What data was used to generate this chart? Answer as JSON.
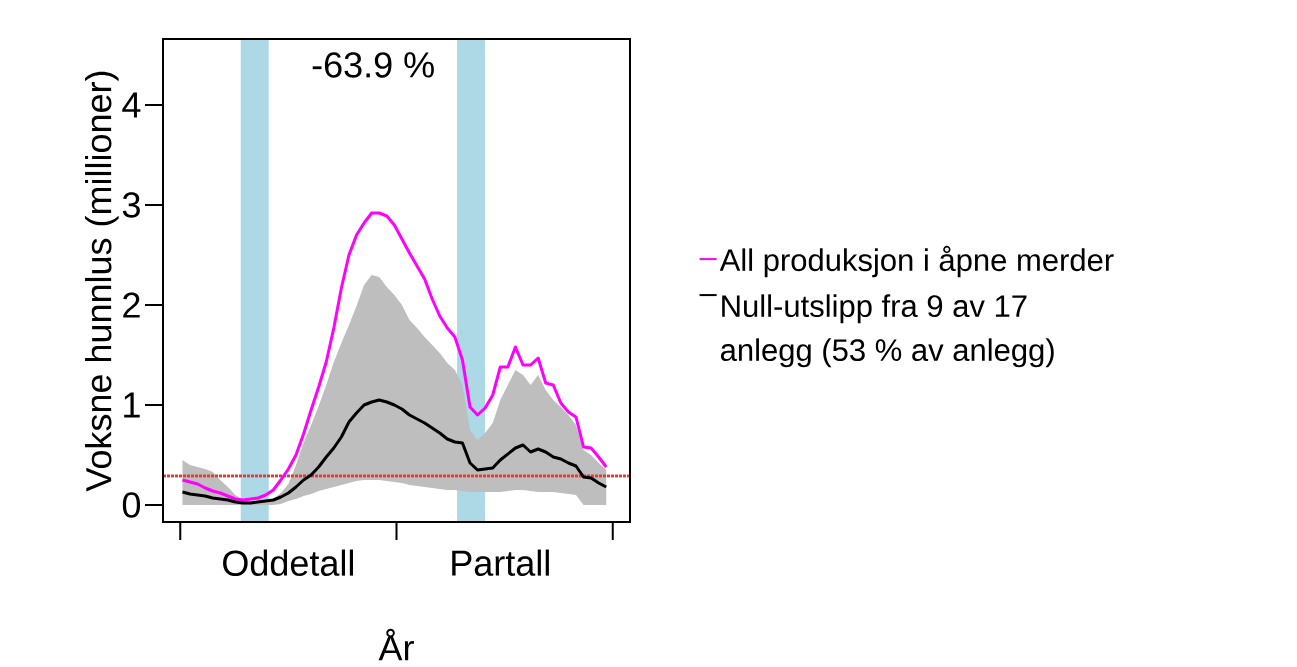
{
  "chart_data": {
    "type": "line",
    "xlabel": "År",
    "ylabel": "Voksne hunnlus (millioner)",
    "annotations": [
      "-63.9 %"
    ],
    "categories": [
      null,
      null,
      null,
      null,
      null,
      null,
      null,
      null,
      null,
      null,
      null,
      null,
      null,
      null,
      "Oddetall",
      null,
      null,
      null,
      null,
      null,
      null,
      null,
      null,
      null,
      null,
      null,
      null,
      null,
      null,
      null,
      null,
      null,
      null,
      null,
      null,
      null,
      null,
      null,
      null,
      null,
      null,
      null,
      "Partall",
      null,
      null,
      null,
      null,
      null,
      null,
      null,
      null,
      null,
      null,
      null,
      null,
      null,
      null
    ],
    "ylim": [
      -0.17,
      4.66
    ],
    "yticks": [
      0,
      1,
      2,
      3,
      4
    ],
    "legend": "right",
    "ref_lines": [
      {
        "axis": "y",
        "value": 0.29,
        "color": "#e8382f",
        "line_style": "dotted"
      }
    ],
    "series": [
      {
        "name": "All produksjon i åpne merder",
        "color": "#ff00ff",
        "values": [
          0.25,
          0.23,
          0.21,
          0.17,
          0.14,
          0.12,
          0.09,
          0.06,
          0.05,
          0.06,
          0.07,
          0.1,
          0.15,
          0.25,
          0.36,
          0.5,
          0.71,
          0.95,
          1.18,
          1.43,
          1.77,
          2.17,
          2.5,
          2.7,
          2.82,
          2.92,
          2.92,
          2.89,
          2.8,
          2.66,
          2.52,
          2.39,
          2.26,
          2.06,
          1.89,
          1.77,
          1.68,
          1.45,
          0.98,
          0.9,
          0.97,
          1.1,
          1.38,
          1.38,
          1.58,
          1.4,
          1.4,
          1.47,
          1.22,
          1.2,
          1.02,
          0.93,
          0.88,
          0.58,
          0.57,
          0.48,
          0.38
        ]
      },
      {
        "name": "Null-utslipp fra 9 av 17 anlegg (53 % av anlegg)",
        "color": "#000000",
        "values": [
          0.13,
          0.11,
          0.1,
          0.09,
          0.07,
          0.06,
          0.05,
          0.03,
          0.02,
          0.02,
          0.03,
          0.04,
          0.05,
          0.08,
          0.12,
          0.18,
          0.25,
          0.3,
          0.38,
          0.48,
          0.57,
          0.68,
          0.83,
          0.92,
          1.0,
          1.03,
          1.05,
          1.03,
          1.0,
          0.96,
          0.9,
          0.86,
          0.82,
          0.77,
          0.72,
          0.66,
          0.63,
          0.62,
          0.42,
          0.35,
          0.36,
          0.37,
          0.45,
          0.51,
          0.57,
          0.6,
          0.53,
          0.56,
          0.53,
          0.48,
          0.46,
          0.42,
          0.39,
          0.28,
          0.27,
          0.22,
          0.18
        ],
        "lower": [
          0,
          0,
          0,
          0,
          0,
          0,
          0,
          0,
          0,
          0,
          0,
          0,
          0,
          0.01,
          0.04,
          0.06,
          0.09,
          0.11,
          0.14,
          0.16,
          0.18,
          0.2,
          0.22,
          0.24,
          0.25,
          0.25,
          0.25,
          0.24,
          0.23,
          0.22,
          0.2,
          0.19,
          0.18,
          0.17,
          0.16,
          0.15,
          0.15,
          0.14,
          0.13,
          0.13,
          0.13,
          0.13,
          0.13,
          0.14,
          0.15,
          0.15,
          0.14,
          0.13,
          0.13,
          0.13,
          0.12,
          0.11,
          0.1,
          0,
          0,
          0,
          0
        ],
        "upper": [
          0.45,
          0.4,
          0.38,
          0.36,
          0.33,
          0.25,
          0.18,
          0.1,
          0.05,
          0.04,
          0.04,
          0.05,
          0.06,
          0.12,
          0.21,
          0.4,
          0.62,
          0.8,
          0.99,
          1.2,
          1.43,
          1.62,
          1.8,
          1.99,
          2.2,
          2.3,
          2.28,
          2.18,
          2.1,
          2.0,
          1.85,
          1.77,
          1.68,
          1.6,
          1.52,
          1.42,
          1.35,
          1.2,
          0.75,
          0.65,
          0.72,
          0.82,
          1.05,
          1.2,
          1.35,
          1.3,
          1.2,
          1.3,
          1.15,
          1.05,
          0.98,
          0.9,
          0.8,
          0.55,
          0.5,
          0.42,
          0.35
        ]
      }
    ]
  }
}
